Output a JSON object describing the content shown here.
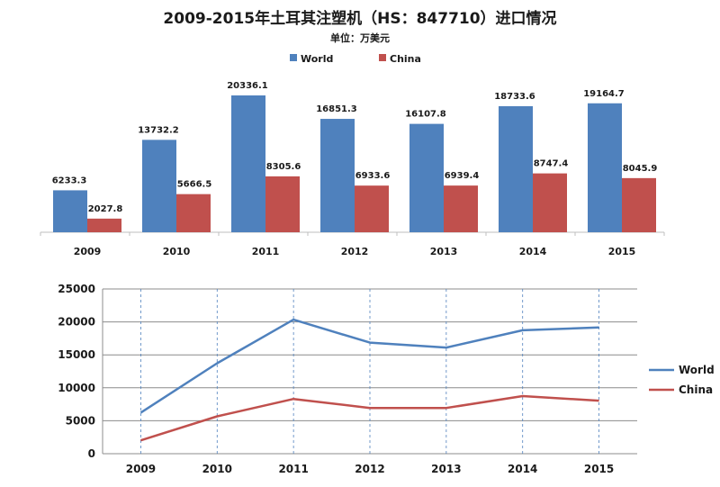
{
  "title": "2009-2015年土耳其注塑机（HS：847710）进口情况",
  "subtitle": "单位：万美元",
  "colors": {
    "world": "#4F81BD",
    "china": "#C0504D"
  },
  "chart_data": [
    {
      "type": "bar",
      "categories": [
        "2009",
        "2010",
        "2011",
        "2012",
        "2013",
        "2014",
        "2015"
      ],
      "series": [
        {
          "name": "World",
          "values": [
            6233.3,
            13732.2,
            20336.1,
            16851.3,
            16107.8,
            18733.6,
            19164.7
          ]
        },
        {
          "name": "China",
          "values": [
            2027.8,
            5666.5,
            8305.6,
            6933.6,
            6939.4,
            8747.4,
            8045.9
          ]
        }
      ],
      "value_labels": {
        "World": [
          "6233.3",
          "13732.2",
          "20336.1",
          "16851.3",
          "16107.8",
          "18733.6",
          "19164.7"
        ],
        "China": [
          "2027.8",
          "5666.5",
          "8305.6",
          "6933.6",
          "6939.4",
          "8747.4",
          "8045.9"
        ]
      },
      "legend": "top-center",
      "grid": false
    },
    {
      "type": "line",
      "categories": [
        "2009",
        "2010",
        "2011",
        "2012",
        "2013",
        "2014",
        "2015"
      ],
      "series": [
        {
          "name": "World",
          "values": [
            6233.3,
            13732.2,
            20336.1,
            16851.3,
            16107.8,
            18733.6,
            19164.7
          ]
        },
        {
          "name": "China",
          "values": [
            2027.8,
            5666.5,
            8305.6,
            6933.6,
            6939.4,
            8747.4,
            8045.9
          ]
        }
      ],
      "yticks": [
        "0",
        "5000",
        "10000",
        "15000",
        "20000",
        "25000"
      ],
      "ylim": [
        0,
        25000
      ],
      "legend": "right",
      "grid": true
    }
  ]
}
